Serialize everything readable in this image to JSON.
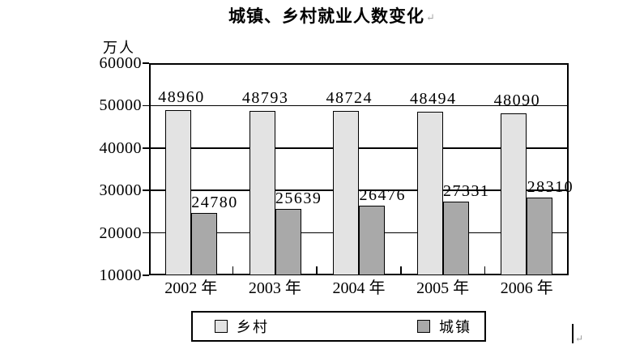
{
  "marks": {
    "title_paragraph": "↵",
    "footer_paragraph": "↵"
  },
  "chart_data": {
    "type": "bar",
    "title": "城镇、乡村就业人数变化",
    "unit_label": "万人",
    "categories": [
      "2002 年",
      "2003 年",
      "2004 年",
      "2005 年",
      "2006 年"
    ],
    "series": [
      {
        "name": "乡村",
        "values": [
          48960,
          48793,
          48724,
          48494,
          48090
        ],
        "color": "#e3e3e3"
      },
      {
        "name": "城镇",
        "values": [
          24780,
          25639,
          26476,
          27331,
          28310
        ],
        "color": "#a9a9a9"
      }
    ],
    "xlabel": "",
    "ylabel": "万人",
    "ylim": [
      10000,
      60000
    ],
    "yticks": [
      10000,
      20000,
      30000,
      40000,
      50000,
      60000
    ],
    "grid": true,
    "legend_position": "bottom",
    "bar_labels_shown": true,
    "line_color": "#000000",
    "background_color": "#ffffff"
  }
}
